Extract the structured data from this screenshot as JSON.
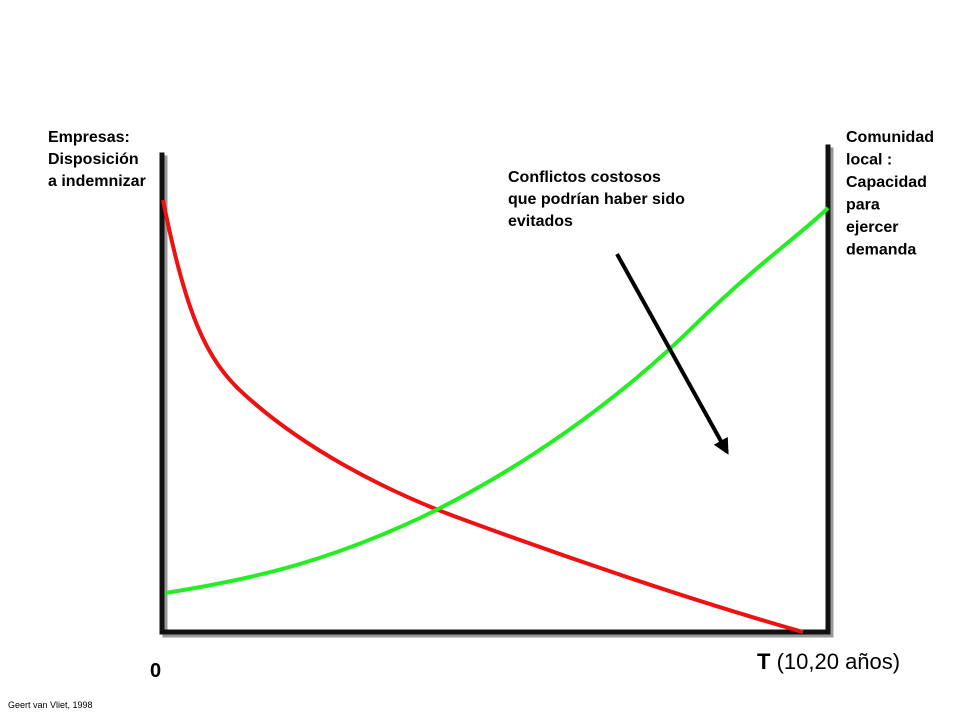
{
  "left_label": [
    "Empresas:",
    "Disposición",
    "a indemnizar"
  ],
  "right_label": [
    "Comunidad",
    "local :",
    "Capacidad",
    "para",
    "ejercer",
    "demanda"
  ],
  "annotation": [
    "Conflictos costosos",
    "que podrían haber sido",
    "evitados"
  ],
  "origin_label": "0",
  "x_axis_label": {
    "symbol": "T",
    "text": "(10,20 años)"
  },
  "credit": "Geert van Vliet, 1998"
}
